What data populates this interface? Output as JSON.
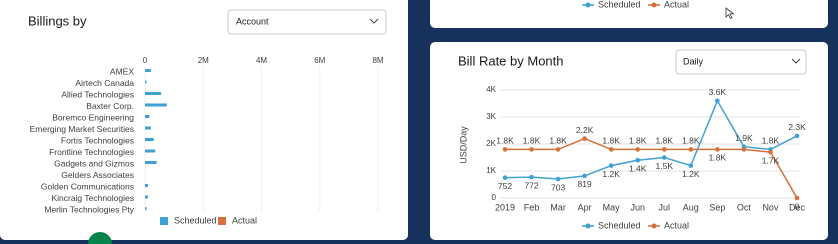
{
  "chart_data": [
    {
      "type": "hbar",
      "title": "Billings by",
      "dropdown": "Account",
      "categories": [
        "AMEX",
        "Airtech Canada",
        "Allied Technologies",
        "Baxter Corp.",
        "Boremco Engineering",
        "Emerging Market Securities",
        "Fortis Technologies",
        "Frontline Technologies",
        "Gadgets and Gizmos",
        "Gelders Associates",
        "Golden Communications",
        "Kincraig Technologies",
        "Merlin Technologies Pty"
      ],
      "series": [
        {
          "name": "Scheduled",
          "color": "#3fa2d4",
          "values": [
            200000,
            50000,
            550000,
            750000,
            150000,
            200000,
            300000,
            350000,
            400000,
            0,
            100000,
            100000,
            50000
          ]
        },
        {
          "name": "Actual",
          "color": "#d6703a",
          "values": [
            0,
            0,
            0,
            0,
            0,
            0,
            0,
            0,
            0,
            0,
            0,
            0,
            0
          ]
        }
      ],
      "xlim": [
        0,
        8000000
      ],
      "xticks": [
        0,
        {
          "value": 2000000,
          "label": "2M"
        },
        {
          "value": 4000000,
          "label": "4M"
        },
        {
          "value": 6000000,
          "label": "6M"
        },
        {
          "value": 8000000,
          "label": "8M"
        }
      ],
      "grid": true
    },
    {
      "type": "line",
      "title": "Bill Rate by Month",
      "dropdown": "Daily",
      "y_label": "USD/Day",
      "categories": [
        "2019",
        "Feb",
        "Mar",
        "Apr",
        "May",
        "Jun",
        "Jul",
        "Aug",
        "Sep",
        "Oct",
        "Nov",
        "Dec"
      ],
      "series": [
        {
          "name": "Scheduled",
          "color": "#3fa2d4",
          "values": [
            752,
            772,
            703,
            819,
            1200,
            1400,
            1500,
            1200,
            3600,
            1900,
            1800,
            2300
          ],
          "value_labels": [
            "752",
            "772",
            "703",
            "819",
            "1.2K",
            "1.4K",
            "1.5K",
            "1.2K",
            "3.6K",
            "1.9K",
            "1.8K",
            "2.3K"
          ]
        },
        {
          "name": "Actual",
          "color": "#d6703a",
          "values": [
            1800,
            1800,
            1800,
            2200,
            1800,
            1800,
            1800,
            1800,
            1800,
            1800,
            1700,
            0
          ],
          "value_labels": [
            "1.8K",
            "1.8K",
            "1.8K",
            "2.2K",
            "1.8K",
            "1.8K",
            "1.8K",
            "1.8K",
            "1.8K",
            null,
            "1.7K",
            "0"
          ]
        }
      ],
      "ylim": [
        0,
        4000
      ],
      "yticks": [
        0,
        {
          "value": 1000,
          "label": "1K"
        },
        {
          "value": 2000,
          "label": "2K"
        },
        {
          "value": 3000,
          "label": "3K"
        },
        {
          "value": 4000,
          "label": "4K"
        }
      ],
      "grid": true
    }
  ],
  "top_card": {
    "legend": [
      "Scheduled",
      "Actual"
    ]
  }
}
